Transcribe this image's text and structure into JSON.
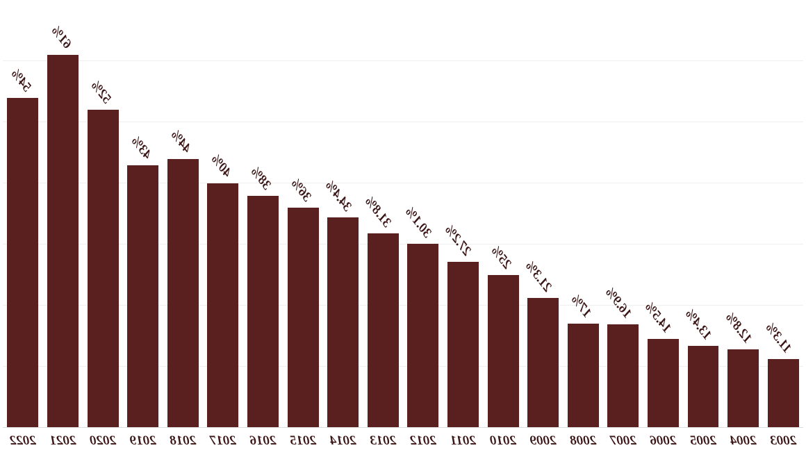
{
  "chart": {
    "type": "bar",
    "mirrored_horizontal": true,
    "background_color": "#ffffff",
    "grid_color": "#eeeeee",
    "baseline_color": "#dcdcdc",
    "bar_color": "#5a2020",
    "label_color": "#3a1414",
    "label_fontsize_pt": 14,
    "label_font_family": "Georgia",
    "label_font_style": "italic",
    "label_rotation_deg": -52,
    "bar_width_ratio": 0.78,
    "y_axis_visible": false,
    "ylim": [
      0,
      70
    ],
    "gridlines_at": [
      10,
      20,
      30,
      40,
      50,
      60,
      70
    ],
    "categories": [
      "2003",
      "2004",
      "2005",
      "2006",
      "2007",
      "2008",
      "2009",
      "2010",
      "2011",
      "2012",
      "2013",
      "2014",
      "2015",
      "2016",
      "2017",
      "2018",
      "2019",
      "2020",
      "2021",
      "2022"
    ],
    "values": [
      11.3,
      12.8,
      13.4,
      14.5,
      16.9,
      17,
      21.3,
      25,
      27.2,
      30.1,
      31.8,
      34.4,
      36,
      38,
      40,
      44,
      43,
      52,
      61,
      54
    ],
    "value_labels": [
      "11.3%",
      "12.8%",
      "13.4%",
      "14.5%",
      "16.9%",
      "17%",
      "21.3%",
      "25%",
      "27.2%",
      "30.1%",
      "31.8%",
      "34.4%",
      "36%",
      "38%",
      "40%",
      "44%",
      "43%",
      "52%",
      "61%",
      "54%"
    ]
  }
}
